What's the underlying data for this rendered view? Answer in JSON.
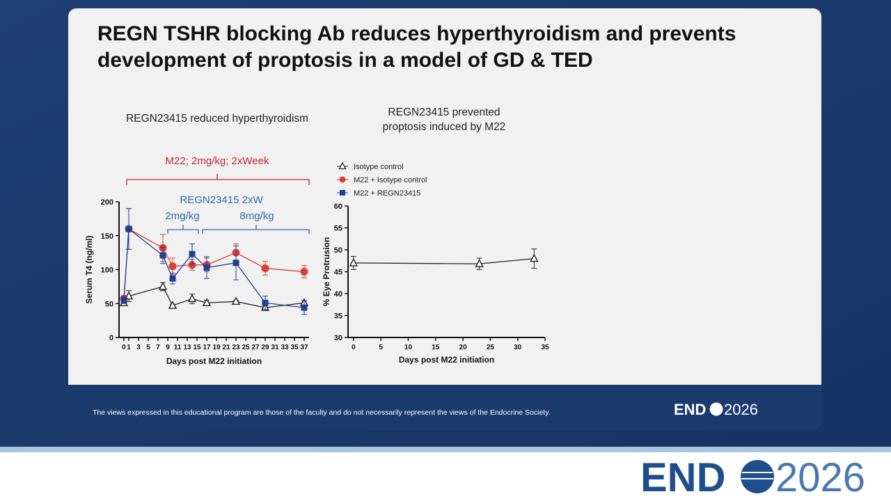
{
  "slide_title_lines": [
    "REGN TSHR blocking Ab reduces hyperthyroidism and prevents",
    "development of proptosis in a model of GD & TED"
  ],
  "annotations": {
    "treatment": "M22; 2mg/kg; 2xWeek",
    "regimen": "REGN23415 2xW",
    "low_dose": "2mg/kg",
    "high_dose": "8mg/kg"
  },
  "footer": {
    "disclaimer": "The views expressed in this educational program are those of the faculty and do not necessarily represent the views of the Endocrine Society.",
    "logo_left": "END",
    "logo_right": "2026"
  },
  "chart_data": [
    {
      "type": "line",
      "title_lines": [
        "REGN23415 reduced hyperthyroidism"
      ],
      "x_label": "Days post M22 initiation",
      "y_label": "Serum T4 (ng/ml)",
      "xlim": [
        -1,
        38
      ],
      "ylim": [
        0,
        200
      ],
      "xticks": [
        0,
        1,
        3,
        5,
        7,
        9,
        11,
        13,
        15,
        17,
        19,
        21,
        23,
        25,
        27,
        29,
        31,
        33,
        35,
        37
      ],
      "yticks": [
        0,
        50,
        100,
        150,
        200
      ],
      "series": [
        {
          "name": "Isotype control",
          "color": "#222222",
          "marker": "triangle",
          "x": [
            0,
            1,
            8,
            10,
            14,
            17,
            23,
            29,
            37
          ],
          "values": [
            51,
            61,
            75,
            47,
            57,
            51,
            53,
            44,
            51
          ],
          "errors": [
            3,
            8,
            6,
            2,
            7,
            4,
            2,
            4,
            3
          ]
        },
        {
          "name": "M22 + Isotype control",
          "color": "#d9402f",
          "marker": "circle",
          "x": [
            0,
            1,
            8,
            10,
            14,
            17,
            23,
            29,
            37
          ],
          "values": [
            57,
            160,
            132,
            105,
            107,
            107,
            125,
            102,
            97
          ],
          "errors": [
            5,
            30,
            20,
            12,
            8,
            10,
            13,
            10,
            9
          ]
        },
        {
          "name": "M22 + REGN23415",
          "color": "#1f3f95",
          "marker": "square",
          "x": [
            0,
            1,
            8,
            10,
            14,
            17,
            23,
            29,
            37
          ],
          "values": [
            55,
            160,
            121,
            87,
            123,
            103,
            110,
            51,
            44
          ],
          "errors": [
            5,
            30,
            12,
            8,
            15,
            16,
            25,
            10,
            10
          ]
        }
      ]
    },
    {
      "type": "line",
      "title_lines": [
        "REGN23415 prevented",
        "proptosis induced by M22"
      ],
      "x_label": "Days post M22 initiation",
      "y_label": "% Eye Protrusion",
      "xlim": [
        -1,
        35
      ],
      "ylim": [
        30,
        60
      ],
      "xticks": [
        0,
        5,
        10,
        15,
        20,
        25,
        30,
        35
      ],
      "yticks": [
        30,
        35,
        40,
        45,
        50,
        55,
        60
      ],
      "series": [
        {
          "color": "#222222",
          "marker": "triangle",
          "x": [
            0,
            23,
            33
          ],
          "values": [
            47,
            46.8,
            48
          ],
          "errors": [
            1.5,
            1.3,
            2.2
          ]
        }
      ]
    }
  ]
}
